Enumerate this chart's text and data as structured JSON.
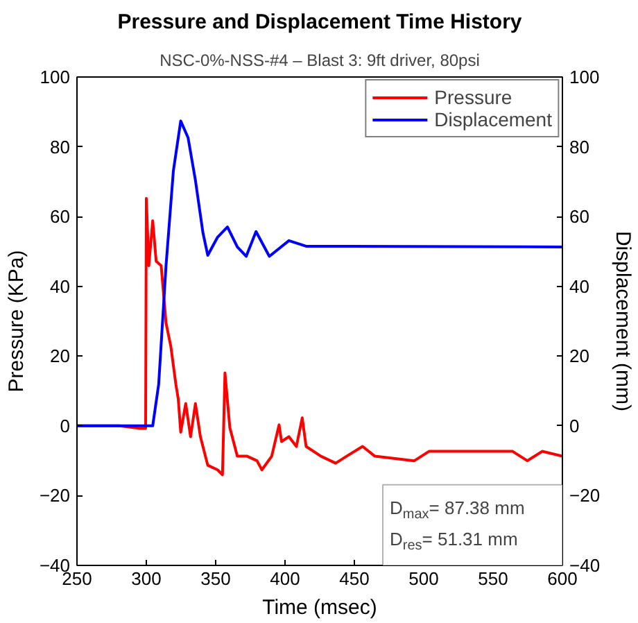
{
  "chart_data": {
    "type": "line",
    "title": "Pressure and Displacement Time History",
    "subtitle": "NSC-0%-NSS-#4 – Blast 3: 9ft driver, 80psi",
    "xlabel": "Time (msec)",
    "ylabel": "Pressure (KPa)",
    "y2label": "Displacement (mm)",
    "xlim": [
      250,
      600
    ],
    "xticks": [
      250,
      300,
      350,
      400,
      450,
      500,
      550,
      600
    ],
    "ylim": [
      -40,
      100
    ],
    "yticks": [
      -40,
      -20,
      0,
      20,
      40,
      60,
      80,
      100
    ],
    "y2lim": [
      -40,
      100
    ],
    "y2ticks": [
      -40,
      -20,
      0,
      20,
      40,
      60,
      80,
      100
    ],
    "grid": false,
    "legend": "top right",
    "series": [
      {
        "name": "Pressure",
        "color": "#ff0000",
        "x": [
          250,
          280.5,
          294.7,
          299.5,
          300.0,
          301.8,
          304.6,
          307.1,
          310.7,
          314.2,
          317.7,
          321.3,
          323.0,
          324.8,
          328.4,
          331.9,
          335.4,
          339.0,
          344.3,
          351.4,
          354.9,
          356.7,
          360.2,
          365.6,
          372.7,
          379.8,
          383.3,
          390.4,
          395.7,
          397.5,
          402.8,
          408.2,
          412.4,
          415.2,
          425.9,
          436.5,
          447.2,
          455.9,
          464.8,
          493.2,
          503.8,
          535.7,
          564.1,
          574.7,
          585.4,
          600
        ],
        "values": [
          0,
          0,
          -0.7,
          -0.7,
          65.2,
          45.9,
          58.8,
          47.2,
          45.9,
          29.5,
          22.7,
          11.9,
          7.8,
          -1.8,
          6.4,
          -3.1,
          6.4,
          -3.1,
          -11.3,
          -12.6,
          -14,
          15.2,
          -0.5,
          -8.7,
          -8.7,
          -10,
          -12.6,
          -8.7,
          0.3,
          -4.5,
          -3.1,
          -5.9,
          2.3,
          -5.9,
          -8.7,
          -10.7,
          -8,
          -5.9,
          -8.7,
          -10,
          -7.3,
          -7.3,
          -7.3,
          -10,
          -7.3,
          -8.7
        ]
      },
      {
        "name": "Displacement",
        "color": "#0000ff",
        "axis": "y2",
        "x": [
          250,
          304.6,
          308.9,
          314.2,
          319.5,
          324.8,
          330.1,
          335.4,
          340.8,
          344.3,
          351.4,
          358.5,
          365.6,
          372.0,
          379.1,
          388.7,
          402.8,
          415.2,
          600
        ],
        "values": [
          0,
          0,
          11.9,
          45.9,
          73.1,
          87.4,
          82.6,
          70.4,
          55.4,
          48.9,
          54.1,
          57.0,
          51.3,
          48.6,
          55.7,
          48.6,
          53.1,
          51.5,
          51.3
        ]
      }
    ],
    "annotations": [
      "D$_{max}$= 87.38 mm",
      "D$_{res}$= 51.31 mm"
    ]
  }
}
